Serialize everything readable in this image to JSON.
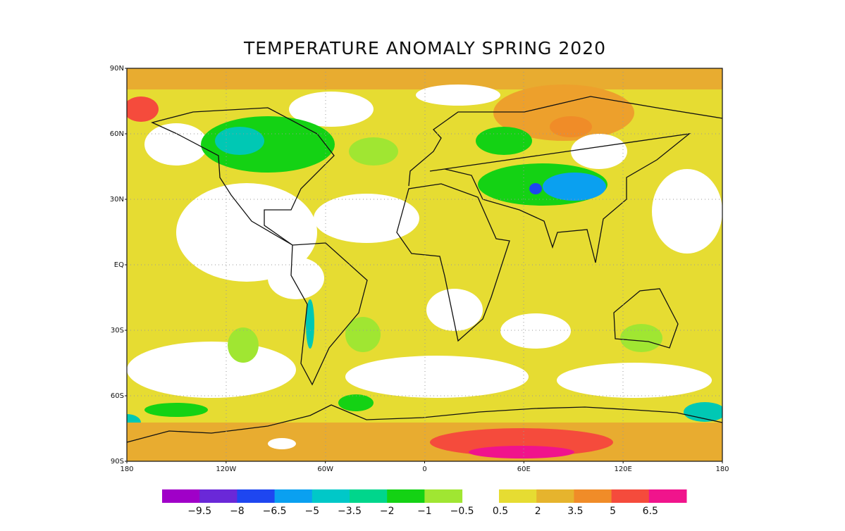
{
  "title": "TEMPERATURE ANOMALY SPRING 2020",
  "latitude_labels": [
    "90N",
    "60N",
    "30N",
    "EQ",
    "30S",
    "60S",
    "90S"
  ],
  "longitude_labels": [
    "180",
    "120W",
    "60W",
    "0",
    "60E",
    "120E",
    "180"
  ],
  "colorbar": {
    "negative": {
      "colors": [
        "#a000c8",
        "#6a28d8",
        "#1e46f0",
        "#0aa0f0",
        "#00c8c8",
        "#00d68c",
        "#14d214",
        "#a0e632"
      ],
      "labels": [
        "−9.5",
        "−8",
        "−6.5",
        "−5",
        "−3.5",
        "−2",
        "−1",
        "−0.5"
      ]
    },
    "positive": {
      "colors": [
        "#e6dc32",
        "#e6b42d",
        "#f08c28",
        "#f54b3c",
        "#f0148c"
      ],
      "labels": [
        "0.5",
        "2",
        "3.5",
        "5",
        "6.5"
      ]
    }
  }
}
